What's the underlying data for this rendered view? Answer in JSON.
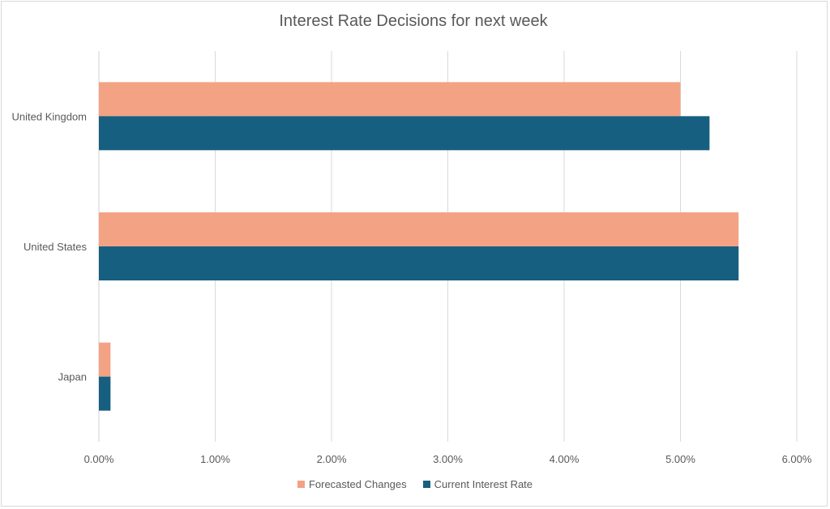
{
  "chart_data": {
    "type": "bar",
    "orientation": "horizontal",
    "title": "Interest Rate Decisions for next week",
    "categories": [
      "United Kingdom",
      "United States",
      "Japan"
    ],
    "series": [
      {
        "name": "Forecasted Changes",
        "color": "#f4a284",
        "values": [
          5.0,
          5.5,
          0.1
        ]
      },
      {
        "name": "Current Interest Rate",
        "color": "#175f80",
        "values": [
          5.25,
          5.5,
          0.1
        ]
      }
    ],
    "xlim": [
      0,
      6
    ],
    "x_ticks": [
      "0.00%",
      "1.00%",
      "2.00%",
      "3.00%",
      "4.00%",
      "5.00%",
      "6.00%"
    ],
    "grid": "vertical",
    "legend": "bottom"
  }
}
